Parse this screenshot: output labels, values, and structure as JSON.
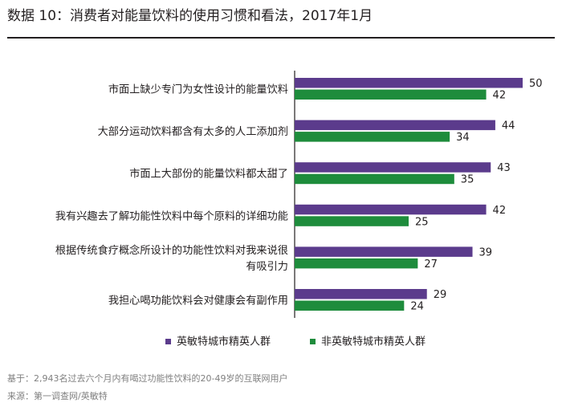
{
  "title": "数据 10：消费者对能量饮料的使用习惯和看法，2017年1月",
  "footnotes": {
    "base": "基于：2,943名过去六个月内有喝过功能性饮料的20-49岁的互联网用户",
    "source": "来源：第一调查网/英敏特"
  },
  "colors": {
    "series_1": "#5b3b8c",
    "series_2": "#1e8c3c",
    "axis": "#231f20"
  },
  "chart_data": {
    "type": "bar",
    "orientation": "horizontal",
    "categories": [
      [
        "市面上缺少专门为女性设计的能量饮料"
      ],
      [
        "大部分运动饮料都含有太多的人工添加剂"
      ],
      [
        "市面上大部份的能量饮料都太甜了"
      ],
      [
        "我有兴趣去了解功能性饮料中每个原料的详细功能"
      ],
      [
        "根据传统食疗概念所设计的功能性饮料对我来说很",
        "有吸引力"
      ],
      [
        "我担心喝功能饮料会对健康会有副作用"
      ]
    ],
    "series": [
      {
        "name": "英敏特城市精英人群",
        "values": [
          50,
          44,
          43,
          42,
          39,
          29
        ]
      },
      {
        "name": "非英敏特城市精英人群",
        "values": [
          42,
          34,
          35,
          25,
          27,
          24
        ]
      }
    ],
    "xlim": [
      0,
      50
    ],
    "data_labels": true,
    "grid": false,
    "legend_position": "bottom-center"
  }
}
